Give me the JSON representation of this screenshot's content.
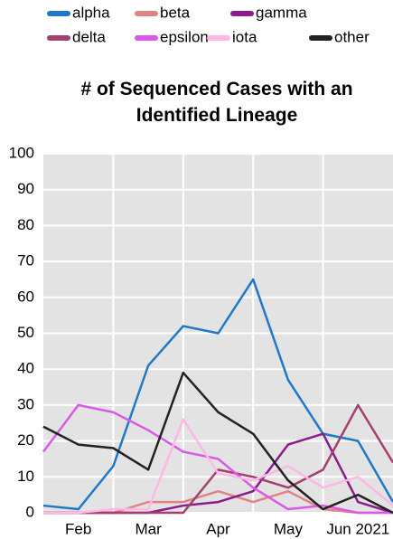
{
  "chart_data": {
    "type": "line",
    "title": "# of Sequenced Cases with an Identified Lineage",
    "categories": [
      null,
      "Feb",
      null,
      "Mar",
      null,
      "Apr",
      null,
      "May",
      null,
      "Jun 2021",
      null
    ],
    "series": [
      {
        "name": "alpha",
        "color": "#1f78c8",
        "values": [
          2,
          1,
          13,
          41,
          52,
          50,
          65,
          37,
          22,
          20,
          3
        ]
      },
      {
        "name": "beta",
        "color": "#e08383",
        "values": [
          0,
          0,
          0,
          3,
          3,
          6,
          3,
          6,
          1,
          0,
          0
        ]
      },
      {
        "name": "gamma",
        "color": "#8b1c8f",
        "values": [
          0,
          0,
          0,
          0,
          2,
          3,
          6,
          19,
          22,
          3,
          0
        ]
      },
      {
        "name": "delta",
        "color": "#a3406f",
        "values": [
          0,
          0,
          0,
          0,
          0,
          12,
          10,
          7,
          12,
          30,
          14
        ]
      },
      {
        "name": "epsilon",
        "color": "#d95ae6",
        "values": [
          17,
          30,
          28,
          23,
          17,
          15,
          7,
          1,
          2,
          0,
          0
        ]
      },
      {
        "name": "iota",
        "color": "#ffb8e6",
        "values": [
          0,
          0,
          1,
          1,
          26,
          11,
          9,
          13,
          7,
          10,
          2
        ]
      },
      {
        "name": "other",
        "color": "#222222",
        "values": [
          24,
          19,
          18,
          12,
          39,
          28,
          22,
          9,
          1,
          5,
          0
        ]
      }
    ],
    "ylim": [
      0,
      100
    ],
    "yticks": [
      0,
      10,
      20,
      30,
      40,
      50,
      60,
      70,
      80,
      90,
      100
    ],
    "grid": true,
    "legend": "top"
  }
}
